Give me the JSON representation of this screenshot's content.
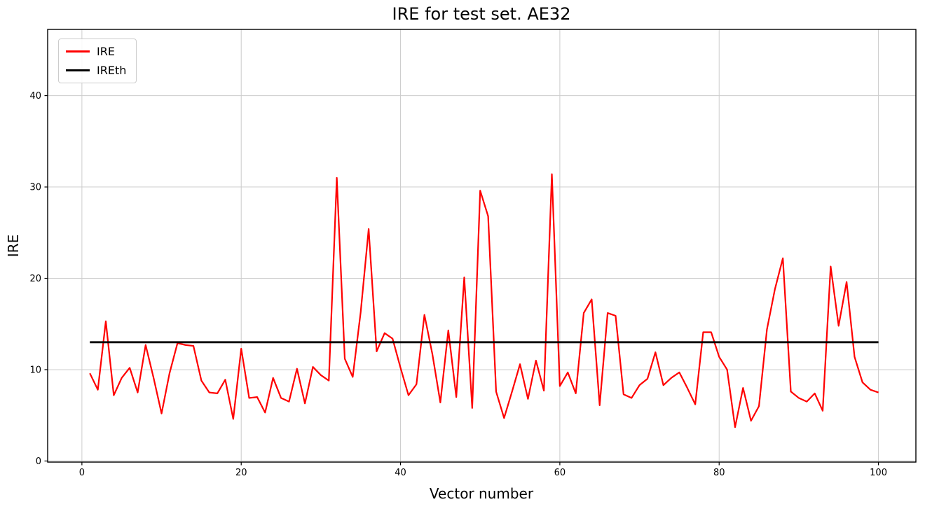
{
  "figure": {
    "background": "#ffffff",
    "grid_color": "#cccccc",
    "spine_color": "#000000"
  },
  "chart_data": {
    "type": "line",
    "title": "IRE for test set. AE32",
    "xlabel": "Vector number",
    "ylabel": "IRE",
    "xlim": [
      -4.3,
      104.7
    ],
    "ylim": [
      -0.12,
      47.25
    ],
    "x_ticks": [
      0,
      20,
      40,
      60,
      80,
      100
    ],
    "y_ticks": [
      0,
      10,
      20,
      30,
      40
    ],
    "grid": true,
    "legend": {
      "position": "upper-left",
      "entries": [
        {
          "label": "IRE",
          "color": "#ff0000"
        },
        {
          "label": "IREth",
          "color": "#000000"
        }
      ]
    },
    "series": [
      {
        "name": "IRE",
        "color": "#ff0000",
        "line_width": 2.2,
        "x_start": 1,
        "values": [
          9.6,
          7.8,
          15.3,
          7.2,
          9.1,
          10.2,
          7.5,
          12.7,
          9.1,
          5.2,
          9.6,
          12.9,
          12.7,
          12.6,
          8.8,
          7.5,
          7.4,
          8.9,
          4.6,
          12.3,
          6.9,
          7.0,
          5.3,
          9.1,
          6.9,
          6.5,
          10.1,
          6.3,
          10.3,
          9.4,
          8.8,
          31.0,
          11.2,
          9.2,
          16.3,
          25.4,
          12.0,
          14.0,
          13.4,
          10.2,
          7.2,
          8.4,
          16.0,
          11.7,
          6.4,
          14.3,
          7.0,
          20.1,
          5.8,
          29.6,
          26.8,
          7.6,
          4.7,
          7.6,
          10.6,
          6.8,
          11.0,
          7.7,
          31.4,
          8.2,
          9.7,
          7.4,
          16.2,
          17.7,
          6.1,
          16.2,
          15.9,
          7.3,
          6.9,
          8.3,
          9.0,
          11.9,
          8.3,
          9.1,
          9.7,
          8.0,
          6.2,
          14.1,
          14.1,
          11.4,
          10.0,
          3.7,
          8.0,
          4.4,
          6.0,
          14.4,
          18.8,
          22.2,
          7.6,
          6.9,
          6.5,
          7.4,
          5.5,
          21.3,
          14.8,
          19.6,
          11.4,
          8.6,
          7.8,
          7.5
        ]
      },
      {
        "name": "IREth",
        "color": "#000000",
        "line_width": 2.8,
        "threshold_value": 13,
        "x_range": [
          1,
          100
        ]
      }
    ]
  }
}
